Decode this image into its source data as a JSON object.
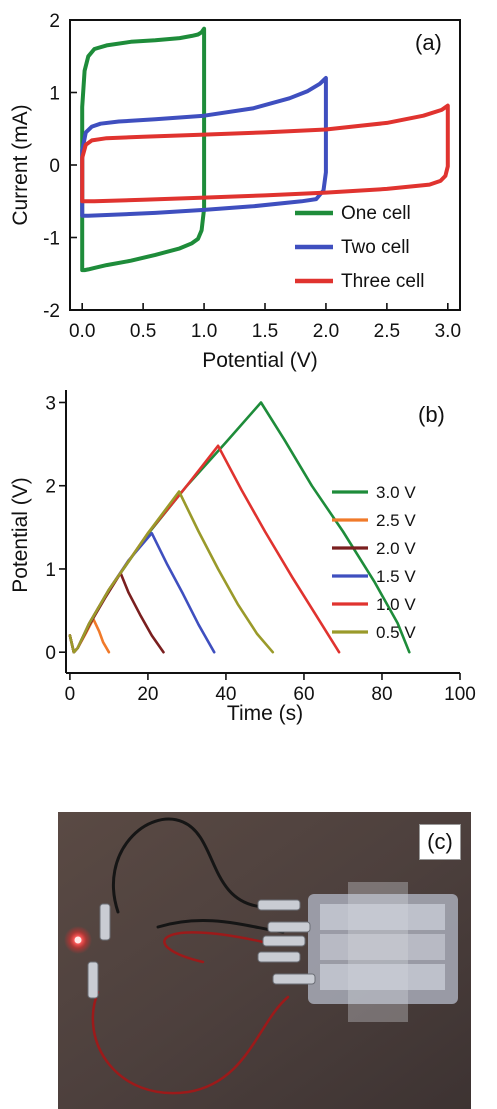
{
  "chart_data": [
    {
      "type": "line",
      "panel_label": "(a)",
      "title": "",
      "xlabel": "Potential (V)",
      "ylabel": "Current (mA)",
      "xlim": [
        -0.1,
        3.1
      ],
      "ylim": [
        -2,
        2
      ],
      "xticks": [
        "0.0",
        "0.5",
        "1.0",
        "1.5",
        "2.0",
        "2.5",
        "3.0"
      ],
      "xtick_values": [
        0.0,
        0.5,
        1.0,
        1.5,
        2.0,
        2.5,
        3.0
      ],
      "yticks": [
        "-2",
        "-1",
        "0",
        "1",
        "2"
      ],
      "ytick_values": [
        -2,
        -1,
        0,
        1,
        2
      ],
      "grid": false,
      "legend_position": "bottom-right",
      "series": [
        {
          "name": "One cell",
          "color": "#1e8c3a",
          "x": [
            0.0,
            0.0,
            0.02,
            0.05,
            0.1,
            0.2,
            0.4,
            0.6,
            0.8,
            0.9,
            0.95,
            0.98,
            1.0,
            1.0,
            1.0,
            0.98,
            0.95,
            0.9,
            0.8,
            0.6,
            0.4,
            0.2,
            0.1,
            0.05,
            0.02,
            0.0
          ],
          "y": [
            -1.45,
            0.8,
            1.3,
            1.5,
            1.6,
            1.65,
            1.7,
            1.72,
            1.75,
            1.78,
            1.8,
            1.83,
            1.88,
            0.0,
            -0.6,
            -0.9,
            -1.02,
            -1.08,
            -1.15,
            -1.24,
            -1.32,
            -1.38,
            -1.42,
            -1.44,
            -1.45,
            -1.45
          ]
        },
        {
          "name": "Two cell",
          "color": "#3f4fbf",
          "x": [
            0.0,
            0.0,
            0.03,
            0.08,
            0.15,
            0.3,
            0.6,
            1.0,
            1.4,
            1.7,
            1.85,
            1.95,
            2.0,
            2.0,
            2.0,
            1.98,
            1.92,
            1.8,
            1.4,
            1.0,
            0.6,
            0.2,
            0.05,
            0.0
          ],
          "y": [
            -0.7,
            0.2,
            0.45,
            0.53,
            0.57,
            0.6,
            0.63,
            0.68,
            0.78,
            0.92,
            1.02,
            1.12,
            1.2,
            0.3,
            -0.1,
            -0.35,
            -0.47,
            -0.5,
            -0.57,
            -0.62,
            -0.66,
            -0.69,
            -0.7,
            -0.7
          ]
        },
        {
          "name": "Three cell",
          "color": "#e0332f",
          "x": [
            0.0,
            0.0,
            0.03,
            0.08,
            0.2,
            0.5,
            1.0,
            1.5,
            2.0,
            2.5,
            2.8,
            2.95,
            3.0,
            3.0,
            2.98,
            2.94,
            2.85,
            2.5,
            2.0,
            1.5,
            1.0,
            0.5,
            0.1,
            0.0
          ],
          "y": [
            -0.5,
            0.1,
            0.28,
            0.34,
            0.37,
            0.39,
            0.42,
            0.45,
            0.49,
            0.58,
            0.68,
            0.76,
            0.82,
            -0.02,
            -0.15,
            -0.22,
            -0.27,
            -0.33,
            -0.38,
            -0.42,
            -0.45,
            -0.48,
            -0.5,
            -0.5
          ]
        }
      ]
    },
    {
      "type": "line",
      "panel_label": "(b)",
      "title": "",
      "xlabel": "Time (s)",
      "ylabel": "Potential (V)",
      "xlim": [
        -1,
        100
      ],
      "ylim": [
        -0.25,
        3.15
      ],
      "xticks": [
        "0",
        "20",
        "40",
        "60",
        "80",
        "100"
      ],
      "xtick_values": [
        0,
        20,
        40,
        60,
        80,
        100
      ],
      "yticks": [
        "0",
        "1",
        "2",
        "3"
      ],
      "ytick_values": [
        0,
        1,
        2,
        3
      ],
      "grid": false,
      "legend_position": "right",
      "series": [
        {
          "name": "3.0 V",
          "color": "#1e8c3a",
          "x": [
            0,
            1,
            2,
            5,
            10,
            20,
            30,
            40,
            49,
            55,
            62,
            70,
            78,
            84,
            87
          ],
          "y": [
            0.2,
            0.0,
            0.05,
            0.35,
            0.75,
            1.42,
            2.0,
            2.52,
            3.0,
            2.55,
            2.0,
            1.45,
            0.85,
            0.35,
            0.0
          ]
        },
        {
          "name": "2.5 V",
          "color": "#f07a2a",
          "x": [
            0,
            1,
            2,
            4,
            6,
            7.5,
            8.5,
            10
          ],
          "y": [
            0.2,
            0.0,
            0.05,
            0.22,
            0.4,
            0.25,
            0.12,
            0.0
          ]
        },
        {
          "name": "2.0 V",
          "color": "#7a1f1f",
          "x": [
            0,
            1,
            2,
            5,
            9,
            13,
            15,
            18,
            21,
            24
          ],
          "y": [
            0.2,
            0.0,
            0.05,
            0.33,
            0.65,
            0.95,
            0.72,
            0.45,
            0.2,
            0.0
          ]
        },
        {
          "name": "1.5 V",
          "color": "#3f4fbf",
          "x": [
            0,
            1,
            2,
            5,
            10,
            15,
            21,
            25,
            29,
            33,
            37
          ],
          "y": [
            0.2,
            0.0,
            0.05,
            0.35,
            0.75,
            1.1,
            1.43,
            1.05,
            0.7,
            0.33,
            0.0
          ]
        },
        {
          "name": "1.0 V",
          "color": "#e0332f",
          "x": [
            0,
            1,
            2,
            5,
            10,
            20,
            30,
            38,
            44,
            50,
            57,
            63,
            69
          ],
          "y": [
            0.2,
            0.0,
            0.05,
            0.35,
            0.75,
            1.43,
            2.0,
            2.48,
            1.95,
            1.45,
            0.9,
            0.45,
            0.0
          ]
        },
        {
          "name": "0.5 V",
          "color": "#9a9a2a",
          "x": [
            0,
            1,
            2,
            5,
            10,
            20,
            28,
            33,
            38,
            43,
            48,
            52
          ],
          "y": [
            0.2,
            0.0,
            0.05,
            0.35,
            0.75,
            1.43,
            1.93,
            1.45,
            1.0,
            0.58,
            0.22,
            0.0
          ]
        }
      ]
    }
  ],
  "photo": {
    "panel_label": "(c)"
  }
}
